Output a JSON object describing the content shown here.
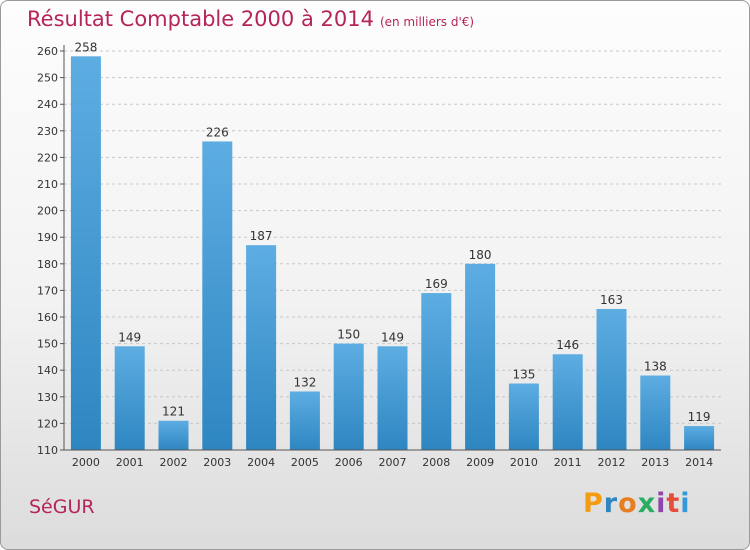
{
  "chart_data": {
    "type": "bar",
    "title": "Résultat Comptable 2000 à 2014",
    "unit_note": "(en milliers d'€)",
    "categories": [
      "2000",
      "2001",
      "2002",
      "2003",
      "2004",
      "2005",
      "2006",
      "2007",
      "2008",
      "2009",
      "2010",
      "2011",
      "2012",
      "2013",
      "2014"
    ],
    "values": [
      258,
      149,
      121,
      226,
      187,
      132,
      150,
      149,
      169,
      180,
      135,
      146,
      163,
      138,
      119
    ],
    "ylim": [
      110,
      260
    ],
    "yticks": [
      110,
      120,
      130,
      140,
      150,
      160,
      170,
      180,
      190,
      200,
      210,
      220,
      230,
      240,
      250,
      260
    ],
    "grid": "horizontal dashed",
    "xlabel": "",
    "ylabel": ""
  },
  "town": "SéGUR",
  "logo": {
    "text": "Proxiti",
    "letters": [
      "P",
      "r",
      "o",
      "x",
      "i",
      "t",
      "i"
    ],
    "colors": [
      "#f39c12",
      "#2e86c1",
      "#e67e22",
      "#27ae60",
      "#8e44ad",
      "#e74c3c",
      "#3498db"
    ]
  },
  "colors": {
    "bar_top": "#5dade2",
    "bar_bottom": "#2e86c1",
    "accent": "#b5245a"
  }
}
